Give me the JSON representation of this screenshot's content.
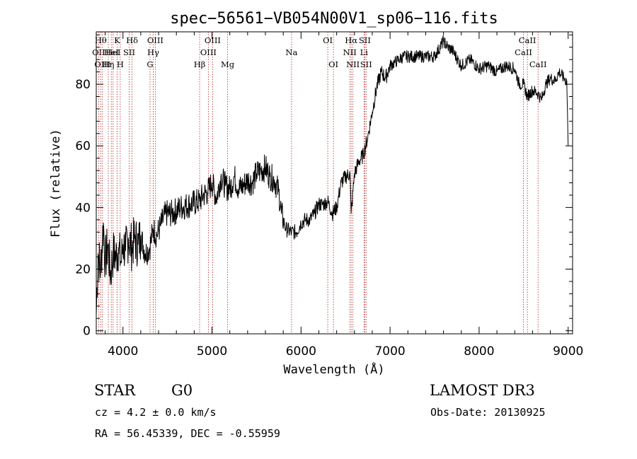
{
  "chart_data": {
    "type": "line",
    "title": "spec−56561−VB054N00V1_sp06−116.fits",
    "xlabel": "Wavelength (Å)",
    "ylabel": "Flux (relative)",
    "xlim": [
      3700,
      9050
    ],
    "ylim": [
      -1,
      97
    ],
    "x_ticks": [
      4000,
      5000,
      6000,
      7000,
      8000,
      9000
    ],
    "y_ticks": [
      0,
      20,
      40,
      60,
      80
    ],
    "x_tick_labels": [
      "4000",
      "5000",
      "6000",
      "7000",
      "8000",
      "9000"
    ],
    "y_tick_labels": [
      "0",
      "20",
      "40",
      "60",
      "80"
    ],
    "colors": {
      "spectrum": "#000000",
      "line_marker": "#b22222"
    },
    "series": [
      {
        "name": "spectrum",
        "x": [
          3700,
          3720,
          3750,
          3780,
          3800,
          3830,
          3860,
          3890,
          3920,
          3950,
          3980,
          4000,
          4030,
          4060,
          4100,
          4130,
          4170,
          4200,
          4250,
          4300,
          4340,
          4380,
          4420,
          4480,
          4550,
          4650,
          4750,
          4861,
          4900,
          4950,
          5000,
          5050,
          5100,
          5150,
          5200,
          5250,
          5300,
          5350,
          5400,
          5450,
          5500,
          5550,
          5600,
          5650,
          5700,
          5750,
          5780,
          5830,
          5893,
          5950,
          6000,
          6050,
          6100,
          6150,
          6200,
          6250,
          6300,
          6350,
          6400,
          6450,
          6500,
          6550,
          6563,
          6600,
          6650,
          6700,
          6750,
          6800,
          6850,
          6900,
          6950,
          7000,
          7050,
          7100,
          7150,
          7200,
          7300,
          7400,
          7500,
          7600,
          7650,
          7700,
          7800,
          7900,
          8000,
          8100,
          8200,
          8300,
          8400,
          8450,
          8498,
          8542,
          8600,
          8662,
          8700,
          8750,
          8800,
          8850,
          8900,
          8950,
          8985,
          9000
        ],
        "y": [
          5,
          25,
          20,
          35,
          22,
          28,
          18,
          25,
          24,
          27,
          22,
          28,
          26,
          30,
          27,
          30,
          28,
          31,
          25,
          27,
          33,
          31,
          34,
          38,
          38,
          40,
          41,
          42,
          44,
          45,
          48,
          43,
          50,
          47,
          46,
          50,
          46,
          47,
          49,
          48,
          51,
          52,
          53,
          50,
          49,
          45,
          38,
          33,
          32,
          32,
          35,
          36,
          36,
          38,
          41,
          41,
          42,
          38,
          40,
          48,
          50,
          51,
          38,
          51,
          55,
          57,
          63,
          71,
          79,
          84,
          82,
          86,
          87,
          88,
          89,
          89,
          89,
          89,
          89,
          94,
          92,
          91,
          86,
          88,
          85,
          86,
          84,
          86,
          85,
          80,
          80,
          76,
          78,
          77,
          75,
          80,
          82,
          81,
          84,
          82,
          81,
          60
        ]
      }
    ],
    "spectral_lines": [
      {
        "x": 3727,
        "label": "OII",
        "row": 1
      },
      {
        "x": 3750,
        "label": "Hθ",
        "row": 0
      },
      {
        "x": 3770,
        "label": "OIII",
        "row": 2
      },
      {
        "x": 3835,
        "label": "Hη",
        "row": 2
      },
      {
        "x": 3869,
        "label": "HeI",
        "row": 1
      },
      {
        "x": 3889,
        "label": "HeI",
        "row": 1
      },
      {
        "x": 3934,
        "label": "K",
        "row": 0
      },
      {
        "x": 3969,
        "label": "H",
        "row": 2
      },
      {
        "x": 4070,
        "label": "SII",
        "row": 1
      },
      {
        "x": 4102,
        "label": "Hδ",
        "row": 0
      },
      {
        "x": 4304,
        "label": "G",
        "row": 2
      },
      {
        "x": 4340,
        "label": "Hγ",
        "row": 1
      },
      {
        "x": 4363,
        "label": "OIII",
        "row": 0
      },
      {
        "x": 4861,
        "label": "Hβ",
        "row": 2
      },
      {
        "x": 4959,
        "label": "OIII",
        "row": 1
      },
      {
        "x": 5007,
        "label": "OIII",
        "row": 0
      },
      {
        "x": 5175,
        "label": "Mg",
        "row": 2
      },
      {
        "x": 5893,
        "label": "Na",
        "row": 1
      },
      {
        "x": 6300,
        "label": "OI",
        "row": 0
      },
      {
        "x": 6364,
        "label": "OI",
        "row": 2
      },
      {
        "x": 6548,
        "label": "NII",
        "row": 1
      },
      {
        "x": 6563,
        "label": "Hα",
        "row": 0
      },
      {
        "x": 6583,
        "label": "NII",
        "row": 2
      },
      {
        "x": 6707,
        "label": "Li",
        "row": 1
      },
      {
        "x": 6716,
        "label": "SII",
        "row": 0
      },
      {
        "x": 6731,
        "label": "SII",
        "row": 2
      },
      {
        "x": 8498,
        "label": "CaII",
        "row": 1
      },
      {
        "x": 8542,
        "label": "CaII",
        "row": 0
      },
      {
        "x": 8662,
        "label": "CaII",
        "row": 2
      }
    ]
  },
  "info": {
    "class": "STAR",
    "subclass": "G0",
    "survey": "LAMOST DR3",
    "cz": "cz = 4.2 ± 0.0 km/s",
    "obs_date": "Obs-Date: 20130925",
    "coords": "RA =  56.45339, DEC =  -0.55959"
  }
}
